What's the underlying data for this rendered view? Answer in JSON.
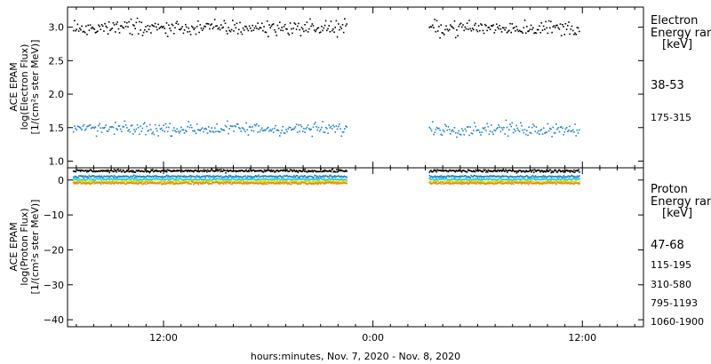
{
  "chart_data": [
    {
      "type": "scatter",
      "instrument_label": "ACE EPAM",
      "ylabel": "log(Electron Flux)",
      "ylabel_units": "[1/(cm²s ster MeV)]",
      "ylim": [
        0.9,
        3.3
      ],
      "yticks": [
        1.0,
        1.5,
        2.0,
        2.5,
        3.0
      ],
      "ytick_labels": [
        "1.0",
        "1.5",
        "2.0",
        "2.5",
        "3.0"
      ],
      "legend_title": "Electron",
      "legend_subtitle": "Energy ranges",
      "legend_units": "[keV]",
      "series": [
        {
          "name": "38-53",
          "color": "#000000",
          "mean": 2.99,
          "spread": 0.07
        },
        {
          "name": "175-315",
          "color": "#1f7fd0",
          "mean": 1.48,
          "spread": 0.06
        }
      ]
    },
    {
      "type": "scatter",
      "instrument_label": "ACE EPAM",
      "ylabel": "log(Proton Flux)",
      "ylabel_units": "[1/(cm²s ster MeV)]",
      "ylim": [
        -42,
        3.5
      ],
      "yticks": [
        0,
        -10,
        -20,
        -30,
        -40
      ],
      "ytick_labels": [
        "0",
        "−10",
        "−20",
        "−30",
        "−40"
      ],
      "legend_title": "Proton",
      "legend_subtitle": "Energy ranges",
      "legend_units": "[keV]",
      "series": [
        {
          "name": "47-68",
          "color": "#000000",
          "mean": 2.6,
          "spread": 0.25
        },
        {
          "name": "115-195",
          "color": "#1f7fd0",
          "mean": 1.0,
          "spread": 0.2
        },
        {
          "name": "310-580",
          "color": "#22cccc",
          "mean": 0.2,
          "spread": 0.2
        },
        {
          "name": "795-1193",
          "color": "#dddd00",
          "mean": -0.5,
          "spread": 0.2
        },
        {
          "name": "1060-1900",
          "color": "#ee8800",
          "mean": -0.9,
          "spread": 0.2
        }
      ]
    }
  ],
  "x_axis": {
    "label": "hours:minutes, Nov.  7, 2020 - Nov.  8, 2020",
    "tick_labels": [
      "12:00",
      "0:00",
      "12:00"
    ],
    "tick_hours": [
      12,
      24,
      36
    ],
    "range_hours": [
      6.5,
      39.5
    ],
    "data_segments_hours": [
      [
        6.8,
        22.5
      ],
      [
        27.2,
        35.8
      ]
    ]
  }
}
